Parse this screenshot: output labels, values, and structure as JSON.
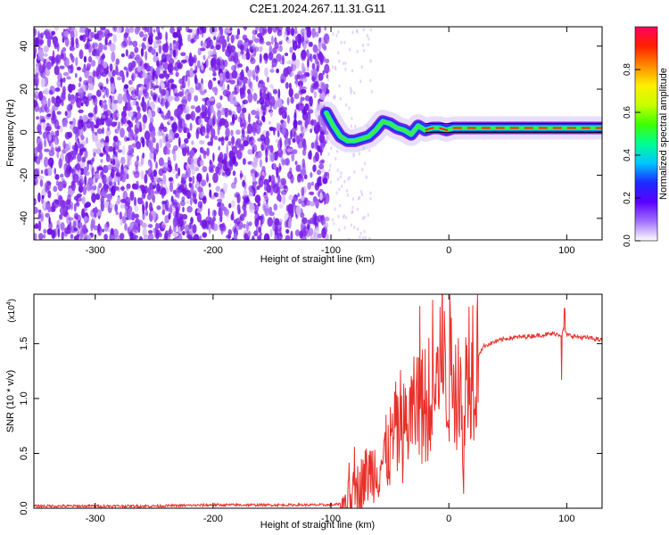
{
  "title": "C2E1.2024.267.11.31.G11",
  "colors": {
    "axis": "#000000",
    "snr_line": "#e8302a",
    "noise": "#7a1fe6",
    "ridge_core": "#ff2a00",
    "ridge_mid": "#3cf03c",
    "ridge_outer": "#1c35e0"
  },
  "chart_data": [
    {
      "type": "heatmap",
      "title": "C2E1.2024.267.11.31.G11",
      "xlabel": "Height of straight line (km)",
      "ylabel": "Frequency (Hz)",
      "xlim": [
        -352,
        130
      ],
      "ylim": [
        -50,
        49
      ],
      "xticks": [
        -300,
        -200,
        -100,
        0,
        100
      ],
      "yticks": [
        -40,
        -20,
        0,
        20,
        40
      ],
      "xtick_labels": [
        "-300",
        "-200",
        "-100",
        "0",
        "100"
      ],
      "ytick_labels": [
        "-40",
        "-20",
        "0",
        "20",
        "40"
      ],
      "noise_region_x": [
        -352,
        -103
      ],
      "ridge": {
        "x": [
          -104,
          -98,
          -92,
          -86,
          -80,
          -74,
          -68,
          -62,
          -56,
          -50,
          -44,
          -38,
          -32,
          -26,
          -20,
          -14,
          -8,
          -2,
          4,
          10,
          20,
          40,
          60,
          80,
          100,
          130
        ],
        "freq": [
          9,
          3,
          -2,
          -4,
          -4,
          -3,
          -2,
          1,
          5,
          4,
          2,
          1,
          -1,
          3,
          1,
          2,
          2,
          1,
          2,
          2,
          2,
          2,
          2,
          2,
          2,
          2
        ]
      },
      "colorbar": {
        "label": "Normalized spectral amplitude",
        "range": [
          0,
          1
        ],
        "ticks": [
          0.0,
          0.2,
          0.4,
          0.6,
          0.8
        ],
        "tick_labels": [
          "0.0",
          "0.2",
          "0.4",
          "0.6",
          "0.8"
        ],
        "colors": [
          "#ffffff",
          "#a070ff",
          "#5a00ff",
          "#1a2cff",
          "#00c8ff",
          "#00ff90",
          "#40ff00",
          "#c8ff00",
          "#ffee00",
          "#ff8a00",
          "#ff2000",
          "#ff0060"
        ]
      }
    },
    {
      "type": "line",
      "xlabel": "Height of straight line (km)",
      "ylabel": "SNR (10 * v/v)",
      "multiplier_label": "(x10",
      "multiplier_exp": "4",
      "xlim": [
        -352,
        130
      ],
      "ylim": [
        0,
        1.95
      ],
      "xticks": [
        -300,
        -200,
        -100,
        0,
        100
      ],
      "yticks": [
        0.0,
        0.5,
        1.0,
        1.5
      ],
      "xtick_labels": [
        "-300",
        "-200",
        "-100",
        "0",
        "100"
      ],
      "ytick_labels": [
        "0.0",
        "0.5",
        "1.0",
        "1.5"
      ],
      "series": [
        {
          "x": [
            -352,
            -300,
            -250,
            -200,
            -150,
            -120,
            -100,
            -90,
            -85,
            -80,
            -75,
            -70,
            -65,
            -60,
            -55,
            -50,
            -45,
            -40,
            -35,
            -30,
            -25,
            -20,
            -15,
            -10,
            -5,
            0,
            5,
            10,
            12,
            15,
            20,
            25,
            30,
            40,
            50,
            60,
            70,
            80,
            90,
            95,
            97,
            100,
            110,
            120,
            130
          ],
          "y": [
            0.02,
            0.02,
            0.02,
            0.03,
            0.03,
            0.03,
            0.03,
            0.04,
            0.08,
            0.15,
            0.22,
            0.3,
            0.35,
            0.38,
            0.45,
            0.55,
            0.7,
            0.65,
            0.8,
            0.85,
            0.9,
            0.95,
            1.1,
            1.15,
            1.2,
            1.25,
            1.3,
            1.05,
            0.3,
            1.35,
            1.38,
            1.4,
            1.48,
            1.52,
            1.55,
            1.56,
            1.57,
            1.58,
            1.59,
            1.58,
            1.62,
            1.58,
            1.56,
            1.55,
            1.53
          ],
          "spikes": [
            [
              -30,
              1.55
            ],
            [
              -20,
              1.45
            ],
            [
              -14,
              1.9
            ],
            [
              -6,
              1.15
            ],
            [
              8,
              1.55
            ],
            [
              12,
              0.28
            ],
            [
              96,
              1.17
            ],
            [
              98,
              1.82
            ]
          ]
        }
      ]
    }
  ]
}
